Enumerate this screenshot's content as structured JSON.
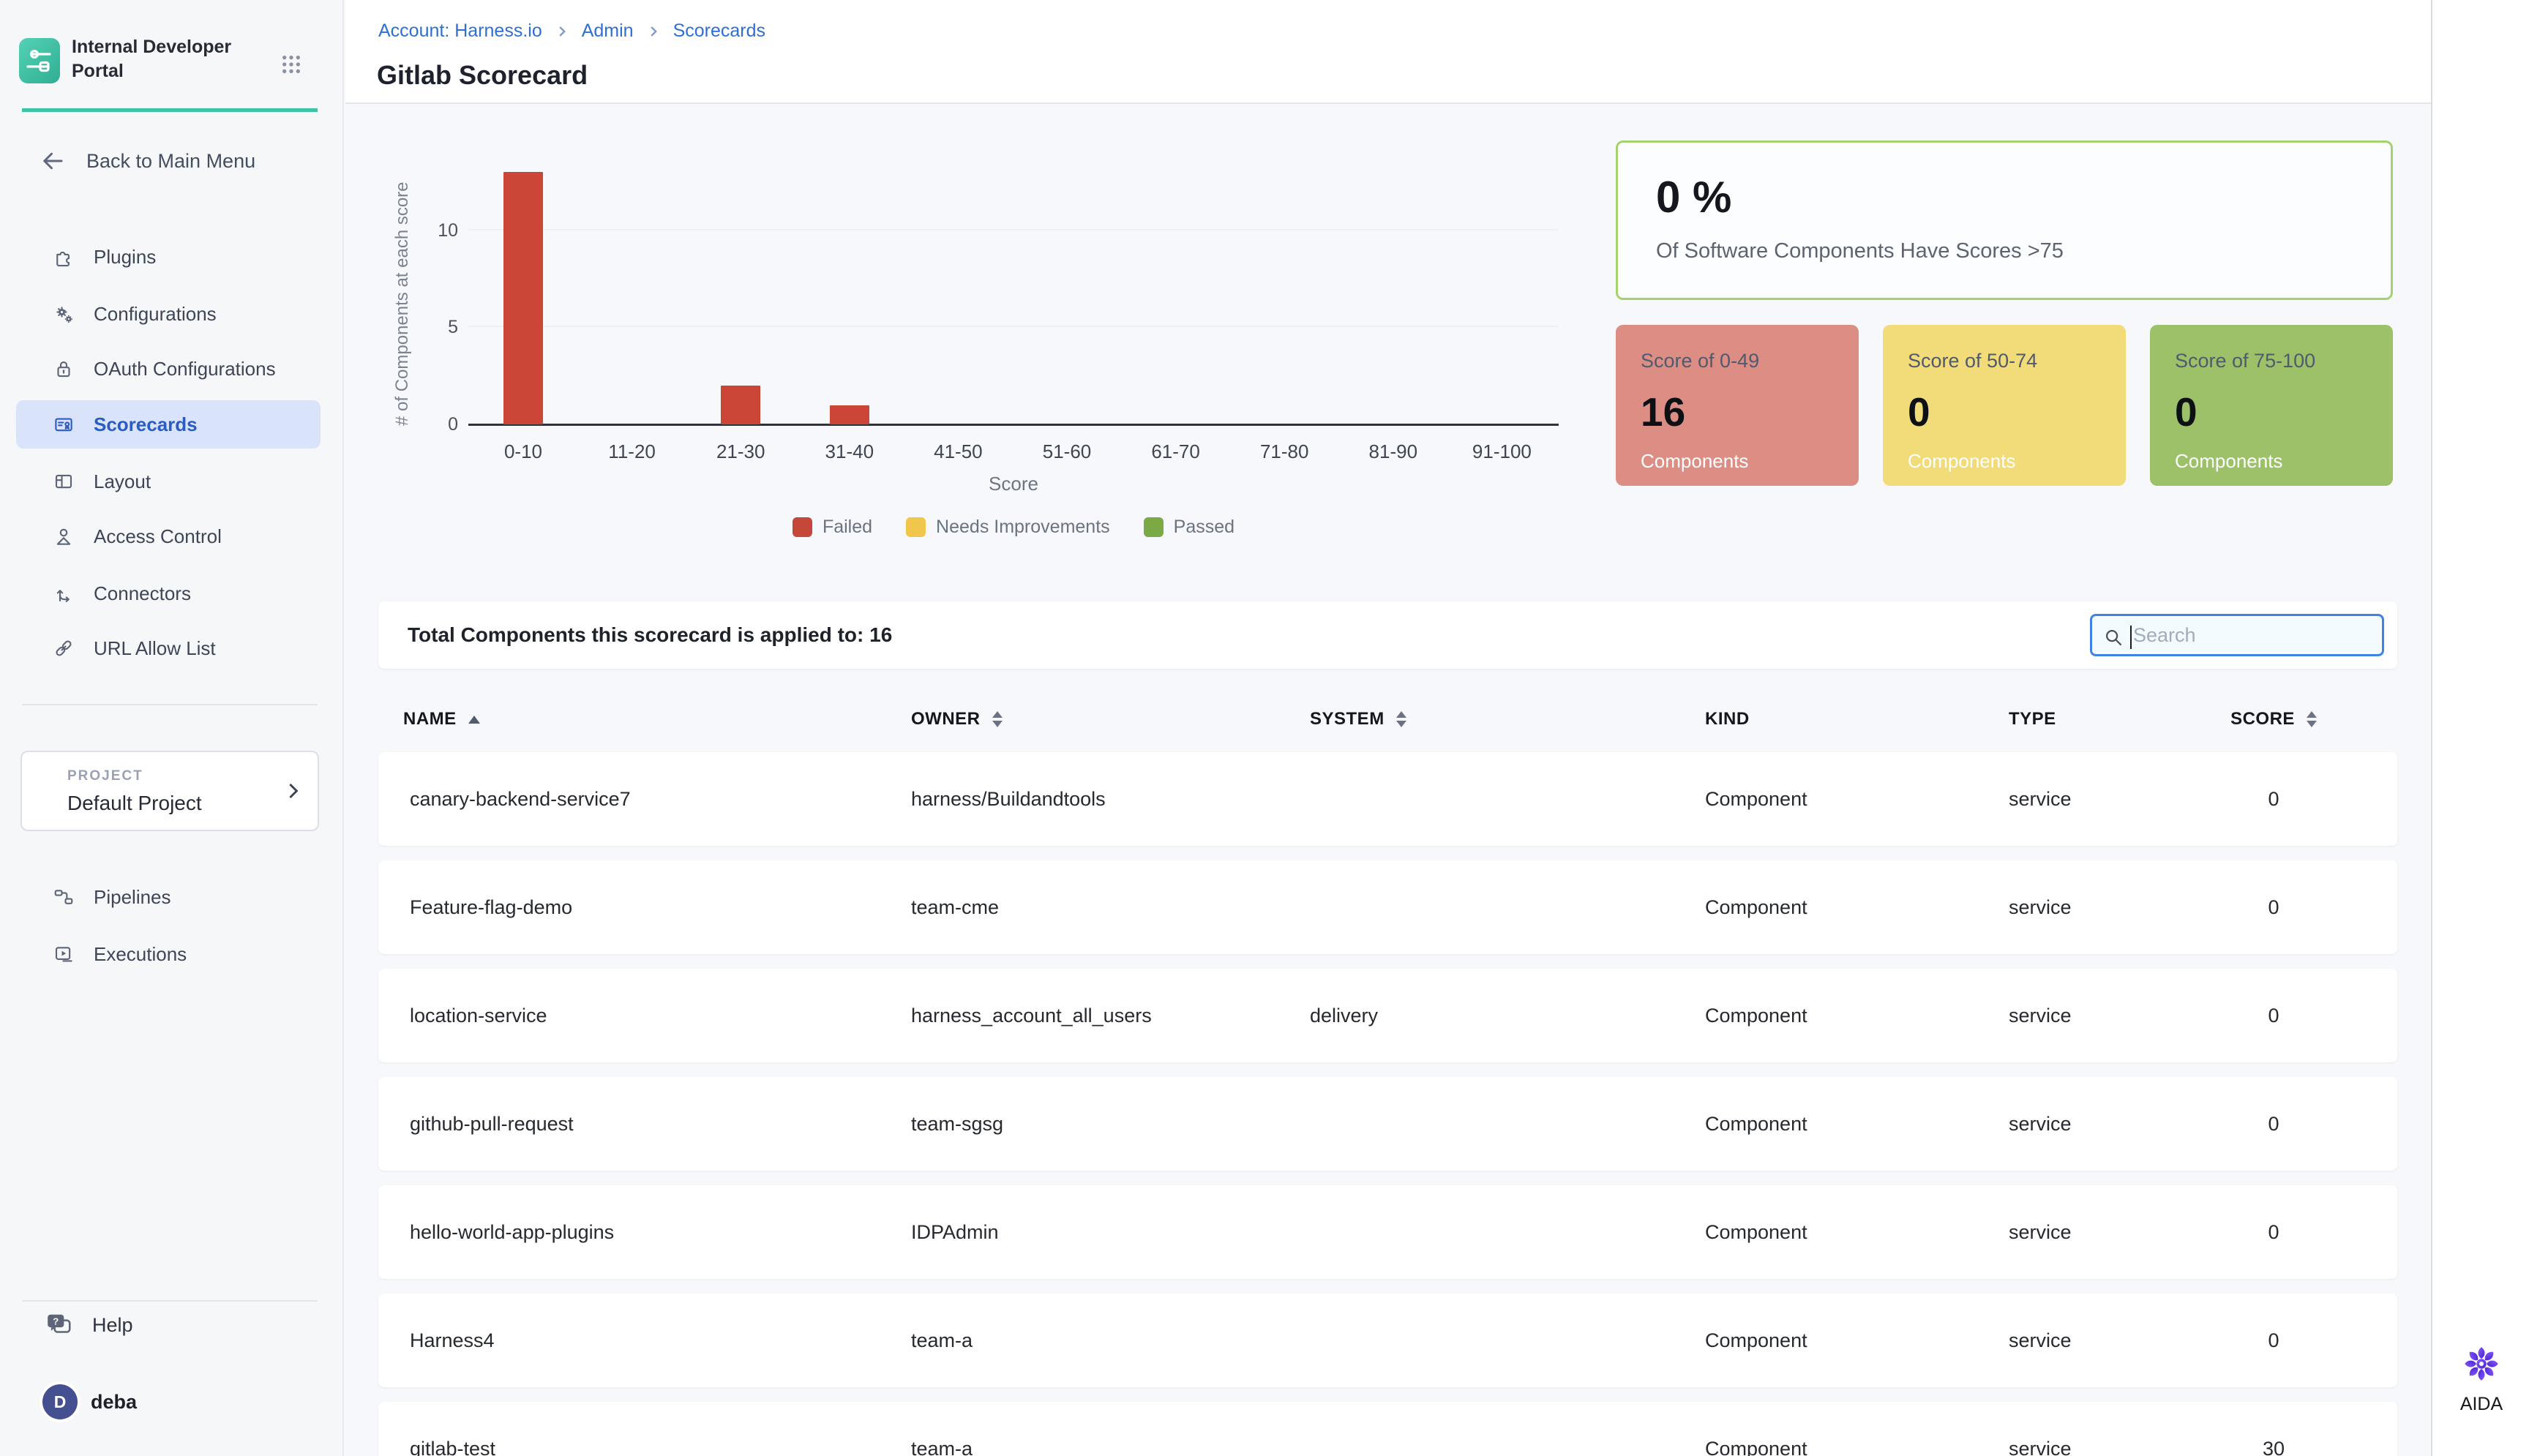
{
  "sidebar": {
    "logo_title": "Internal Developer Portal",
    "back_label": "Back to Main Menu",
    "items": [
      {
        "label": "Plugins"
      },
      {
        "label": "Configurations"
      },
      {
        "label": "OAuth Configurations"
      },
      {
        "label": "Scorecards",
        "selected": true
      },
      {
        "label": "Layout"
      },
      {
        "label": "Access Control"
      },
      {
        "label": "Connectors"
      },
      {
        "label": "URL Allow List"
      }
    ],
    "project_label": "PROJECT",
    "project_name": "Default Project",
    "project_items": [
      {
        "label": "Pipelines"
      },
      {
        "label": "Executions"
      }
    ],
    "help_label": "Help",
    "user": {
      "initial": "D",
      "name": "deba"
    }
  },
  "header": {
    "breadcrumb": [
      "Account: Harness.io",
      "Admin",
      "Scorecards"
    ],
    "page_title": "Gitlab Scorecard"
  },
  "chart_data": {
    "type": "bar",
    "title": "",
    "categories": [
      "0-10",
      "11-20",
      "21-30",
      "31-40",
      "41-50",
      "51-60",
      "61-70",
      "71-80",
      "81-90",
      "91-100"
    ],
    "values": [
      13,
      0,
      2,
      1,
      0,
      0,
      0,
      0,
      0,
      0
    ],
    "xlabel": "Score",
    "ylabel": "# of Components at each score",
    "yticks": [
      0,
      5,
      10
    ],
    "ylim": [
      0,
      13.2
    ],
    "grid": true,
    "bar_color": "#cb4636",
    "legend_position": "bottom",
    "legend": [
      {
        "label": "Failed",
        "color": "#c4473a"
      },
      {
        "label": "Needs Improvements",
        "color": "#f0c64d"
      },
      {
        "label": "Passed",
        "color": "#7ba946"
      }
    ]
  },
  "stats": {
    "percent_value": "0 %",
    "percent_caption": "Of Software Components Have Scores >75",
    "percent_border_color": "#a4d26f",
    "cards": [
      {
        "title": "Score of 0-49",
        "value": "16",
        "caption": "Components",
        "bg": "#dc8e85"
      },
      {
        "title": "Score of 50-74",
        "value": "0",
        "caption": "Components",
        "bg": "#f2db79"
      },
      {
        "title": "Score of 75-100",
        "value": "0",
        "caption": "Components",
        "bg": "#9cc168"
      }
    ]
  },
  "table": {
    "total_label": "Total Components this scorecard is applied to: 16",
    "search_placeholder": "Search",
    "columns": [
      {
        "label": "NAME",
        "sort": "asc"
      },
      {
        "label": "OWNER",
        "sort": "both"
      },
      {
        "label": "SYSTEM",
        "sort": "both"
      },
      {
        "label": "KIND",
        "sort": "none"
      },
      {
        "label": "TYPE",
        "sort": "none"
      },
      {
        "label": "SCORE",
        "sort": "both"
      }
    ],
    "rows": [
      {
        "name": "canary-backend-service7",
        "owner": "harness/Buildandtools",
        "system": "",
        "kind": "Component",
        "type": "service",
        "score": "0"
      },
      {
        "name": "Feature-flag-demo",
        "owner": "team-cme",
        "system": "",
        "kind": "Component",
        "type": "service",
        "score": "0"
      },
      {
        "name": "location-service",
        "owner": "harness_account_all_users",
        "system": "delivery",
        "kind": "Component",
        "type": "service",
        "score": "0"
      },
      {
        "name": "github-pull-request",
        "owner": "team-sgsg",
        "system": "",
        "kind": "Component",
        "type": "service",
        "score": "0"
      },
      {
        "name": "hello-world-app-plugins",
        "owner": "IDPAdmin",
        "system": "",
        "kind": "Component",
        "type": "service",
        "score": "0"
      },
      {
        "name": "Harness4",
        "owner": "team-a",
        "system": "",
        "kind": "Component",
        "type": "service",
        "score": "0"
      },
      {
        "name": "gitlab-test",
        "owner": "team-a",
        "system": "",
        "kind": "Component",
        "type": "service",
        "score": "30"
      }
    ]
  },
  "aida": {
    "label": "AIDA"
  }
}
